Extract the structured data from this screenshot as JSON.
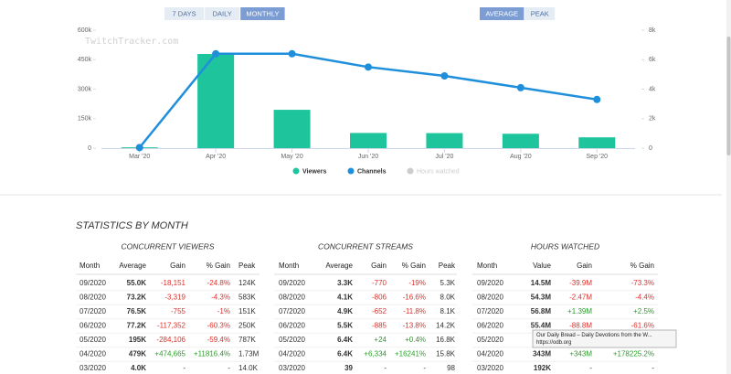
{
  "controls": {
    "range_buttons": [
      "7 DAYS",
      "DAILY",
      "MONTHLY"
    ],
    "range_active": 2,
    "mode_buttons": [
      "AVERAGE",
      "PEAK"
    ],
    "mode_active": 0
  },
  "watermark": "TwitchTracker.com",
  "chart_data": {
    "type": "bar",
    "categories": [
      "Mar '20",
      "Apr '20",
      "May '20",
      "Jun '20",
      "Jul '20",
      "Aug '20",
      "Sep '20"
    ],
    "series": [
      {
        "name": "Viewers",
        "type": "bar",
        "color": "#1dc49c",
        "values": [
          4000,
          479000,
          195000,
          77200,
          76500,
          73200,
          55000
        ]
      },
      {
        "name": "Channels",
        "type": "line",
        "axis": "y2",
        "color": "#1f8fdc",
        "values": [
          39,
          6400,
          6400,
          5500,
          4900,
          4100,
          3300
        ]
      }
    ],
    "inactive_legend": "Hours watched",
    "ylim": [
      0,
      600000
    ],
    "yticks": [
      0,
      {
        "value": 150000,
        "label": "150k"
      },
      {
        "value": 300000,
        "label": "300k"
      },
      {
        "value": 450000,
        "label": "450k"
      },
      {
        "value": 600000,
        "label": "600k"
      }
    ],
    "y2lim": [
      0,
      8000
    ],
    "y2ticks": [
      0,
      {
        "value": 2000,
        "label": "2k"
      },
      {
        "value": 4000,
        "label": "4k"
      },
      {
        "value": 6000,
        "label": "6k"
      },
      {
        "value": 8000,
        "label": "8k"
      }
    ],
    "grid": false
  },
  "statistics": {
    "title": "STATISTICS BY MONTH",
    "tables": [
      {
        "title": "CONCURRENT VIEWERS",
        "columns": [
          "Month",
          "Average",
          "Gain",
          "% Gain",
          "Peak"
        ],
        "rows": [
          [
            "09/2020",
            "55.0K",
            "-18,151",
            "-24.8%",
            "124K"
          ],
          [
            "08/2020",
            "73.2K",
            "-3,319",
            "-4.3%",
            "583K"
          ],
          [
            "07/2020",
            "76.5K",
            "-755",
            "-1%",
            "151K"
          ],
          [
            "06/2020",
            "77.2K",
            "-117,352",
            "-60.3%",
            "250K"
          ],
          [
            "05/2020",
            "195K",
            "-284,106",
            "-59.4%",
            "787K"
          ],
          [
            "04/2020",
            "479K",
            "+474,665",
            "+11816.4%",
            "1.73M"
          ],
          [
            "03/2020",
            "4.0K",
            "-",
            "-",
            "14.0K"
          ]
        ]
      },
      {
        "title": "CONCURRENT STREAMS",
        "columns": [
          "Month",
          "Average",
          "Gain",
          "% Gain",
          "Peak"
        ],
        "rows": [
          [
            "09/2020",
            "3.3K",
            "-770",
            "-19%",
            "5.3K"
          ],
          [
            "08/2020",
            "4.1K",
            "-806",
            "-16.6%",
            "8.0K"
          ],
          [
            "07/2020",
            "4.9K",
            "-652",
            "-11.8%",
            "8.1K"
          ],
          [
            "06/2020",
            "5.5K",
            "-885",
            "-13.8%",
            "14.2K"
          ],
          [
            "05/2020",
            "6.4K",
            "+24",
            "+0.4%",
            "16.8K"
          ],
          [
            "04/2020",
            "6.4K",
            "+6,334",
            "+16241%",
            "15.8K"
          ],
          [
            "03/2020",
            "39",
            "-",
            "-",
            "98"
          ]
        ]
      },
      {
        "title": "HOURS WATCHED",
        "columns": [
          "Month",
          "Value",
          "Gain",
          "% Gain"
        ],
        "rows": [
          [
            "09/2020",
            "14.5M",
            "-39.9M",
            "-73.3%"
          ],
          [
            "08/2020",
            "54.3M",
            "-2.47M",
            "-4.4%"
          ],
          [
            "07/2020",
            "56.8M",
            "+1.39M",
            "+2.5%"
          ],
          [
            "06/2020",
            "55.4M",
            "-88.8M",
            "-61.6%"
          ],
          [
            "05/2020",
            "144"
          ],
          [
            "04/2020",
            "343M",
            "+343M",
            "+178225.2%"
          ],
          [
            "03/2020",
            "192K",
            "-",
            "-"
          ]
        ]
      }
    ]
  },
  "tooltip": {
    "title": "Our Daily Bread – Daily Devotions from the W...",
    "url": "https://odb.org"
  }
}
